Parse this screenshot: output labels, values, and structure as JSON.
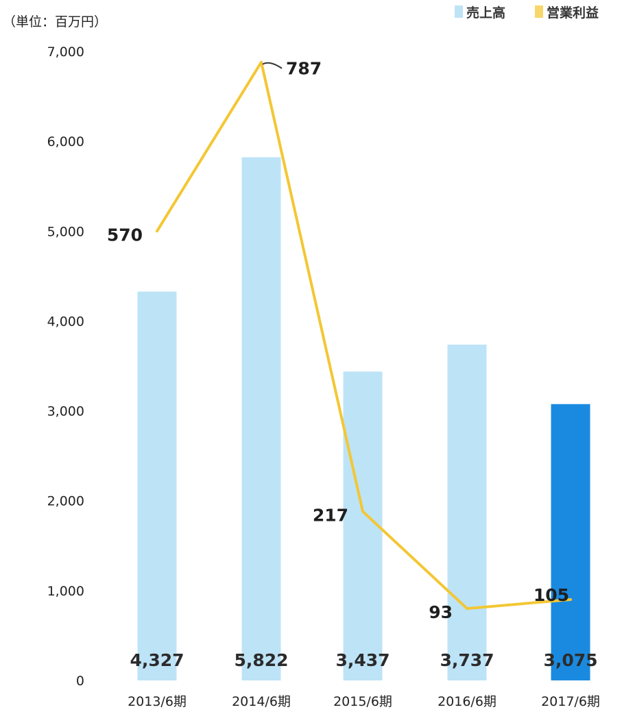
{
  "chart_data": {
    "type": "bar",
    "unit_label": "（単位：百万円）",
    "categories": [
      "2013/6期",
      "2014/6期",
      "2015/6期",
      "2016/6期",
      "2017/6期"
    ],
    "y_ticks": [
      "0",
      "1,000",
      "2,000",
      "3,000",
      "4,000",
      "5,000",
      "6,000",
      "7,000"
    ],
    "ylim": [
      0,
      7000
    ],
    "grid": false,
    "legend_position": "top-right",
    "series": [
      {
        "name": "売上高",
        "type": "bar",
        "color": "#bde3f7",
        "highlight_color": "#1a8ae0",
        "highlight_index": 4,
        "values": [
          4327,
          5822,
          3437,
          3737,
          3075
        ],
        "value_labels": [
          "4,327",
          "5,822",
          "3,437",
          "3,737",
          "3,075"
        ]
      },
      {
        "name": "営業利益",
        "type": "line",
        "color": "#f3c734",
        "values": [
          570,
          787,
          217,
          93,
          105
        ],
        "value_labels": [
          "570",
          "787",
          "217",
          "93",
          "105"
        ],
        "plotted_positions": [
          5000,
          6880,
          1880,
          800,
          900
        ]
      }
    ]
  }
}
